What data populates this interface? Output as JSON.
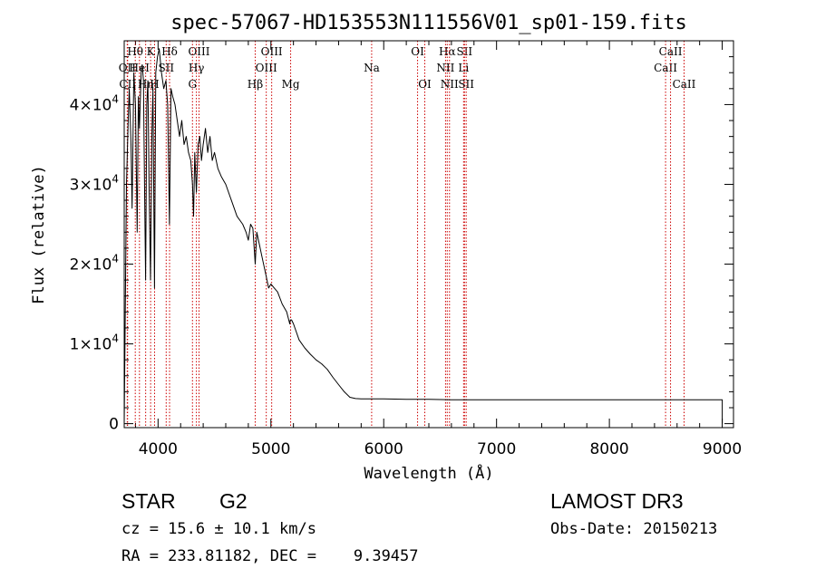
{
  "chart_data": {
    "type": "line",
    "title": "spec-57067-HD153553N111556V01_sp01-159.fits",
    "xlabel": "Wavelength (Å)",
    "ylabel": "Flux (relative)",
    "xlim": [
      3700,
      9100
    ],
    "ylim": [
      -500,
      48000
    ],
    "x_ticks": [
      4000,
      5000,
      6000,
      7000,
      8000,
      9000
    ],
    "y_ticks": [
      {
        "value": 0,
        "label": "0"
      },
      {
        "value": 10000,
        "label": "1×10",
        "exp": "4"
      },
      {
        "value": 20000,
        "label": "2×10",
        "exp": "4"
      },
      {
        "value": 30000,
        "label": "3×10",
        "exp": "4"
      },
      {
        "value": 40000,
        "label": "4×10",
        "exp": "4"
      }
    ],
    "line_color": "#000000",
    "marker_color": "#cc0000",
    "series": [
      {
        "name": "flux",
        "x": [
          3700,
          3720,
          3735,
          3745,
          3760,
          3770,
          3785,
          3800,
          3815,
          3825,
          3835,
          3850,
          3860,
          3870,
          3880,
          3890,
          3900,
          3910,
          3920,
          3933,
          3945,
          3955,
          3968,
          3980,
          3995,
          4010,
          4030,
          4050,
          4070,
          4085,
          4101,
          4115,
          4130,
          4150,
          4170,
          4190,
          4210,
          4230,
          4250,
          4270,
          4290,
          4305,
          4315,
          4325,
          4340,
          4355,
          4370,
          4385,
          4400,
          4420,
          4440,
          4460,
          4480,
          4500,
          4530,
          4560,
          4600,
          4650,
          4700,
          4750,
          4780,
          4800,
          4820,
          4840,
          4861,
          4875,
          4890,
          4920,
          4950,
          4980,
          5000,
          5030,
          5060,
          5100,
          5140,
          5167,
          5172,
          5183,
          5200,
          5250,
          5300,
          5350,
          5400,
          5450,
          5500,
          5550,
          5600,
          5650,
          5700,
          5750,
          5800,
          5850,
          5900,
          6000,
          6200,
          6400,
          6600,
          6700,
          6800,
          7000,
          8000,
          9000,
          9000
        ],
        "y": [
          0,
          30000,
          38000,
          42000,
          35000,
          27000,
          44000,
          40000,
          24000,
          41000,
          37000,
          44000,
          45000,
          43000,
          30000,
          18000,
          40000,
          43000,
          30000,
          18000,
          36000,
          42000,
          17000,
          44000,
          46000,
          47000,
          44000,
          42000,
          43000,
          40000,
          25000,
          42000,
          41000,
          40000,
          38000,
          36000,
          38000,
          35000,
          36000,
          34000,
          33000,
          30000,
          26000,
          34000,
          29000,
          35000,
          36000,
          33000,
          35000,
          37000,
          34000,
          36000,
          33000,
          34000,
          32000,
          31000,
          30000,
          28000,
          26000,
          25000,
          24000,
          23000,
          25000,
          24500,
          20000,
          24000,
          23000,
          21000,
          19000,
          17000,
          17500,
          17000,
          16500,
          15000,
          14000,
          12500,
          13000,
          13000,
          12500,
          10500,
          9500,
          8700,
          8000,
          7500,
          6800,
          5800,
          4900,
          4000,
          3300,
          3150,
          3100,
          3100,
          3100,
          3100,
          3050,
          3050,
          3000,
          3000,
          3000,
          3000,
          3000,
          3000,
          0
        ]
      }
    ],
    "lines": [
      {
        "name": "Hθ",
        "x": 3798,
        "row": 1
      },
      {
        "name": "OII",
        "x": 3727,
        "row": 2
      },
      {
        "name": "CII",
        "x": 3730,
        "row": 3
      },
      {
        "name": "HeI",
        "x": 3835,
        "row": 2
      },
      {
        "name": "Hη",
        "x": 3890,
        "row": 3
      },
      {
        "name": "K",
        "x": 3934,
        "row": 1
      },
      {
        "name": "H",
        "x": 3969,
        "row": 3
      },
      {
        "name": "Hδ",
        "x": 4102,
        "row": 1
      },
      {
        "name": "SII",
        "x": 4072,
        "row": 2
      },
      {
        "name": "OIII",
        "x": 4363,
        "row": 1
      },
      {
        "name": "Hγ",
        "x": 4340,
        "row": 2
      },
      {
        "name": "G",
        "x": 4305,
        "row": 3
      },
      {
        "name": "Hβ",
        "x": 4861,
        "row": 3
      },
      {
        "name": "OIII",
        "x": 4959,
        "row": 2
      },
      {
        "name": "OIII",
        "x": 5007,
        "row": 1
      },
      {
        "name": "Mg",
        "x": 5175,
        "row": 3
      },
      {
        "name": "Na",
        "x": 5893,
        "row": 2
      },
      {
        "name": "OI",
        "x": 6300,
        "row": 1
      },
      {
        "name": "OI",
        "x": 6364,
        "row": 3
      },
      {
        "name": "Hα",
        "x": 6563,
        "row": 1
      },
      {
        "name": "NII",
        "x": 6548,
        "row": 2
      },
      {
        "name": "NII",
        "x": 6583,
        "row": 3
      },
      {
        "name": "Li",
        "x": 6708,
        "row": 2
      },
      {
        "name": "SII",
        "x": 6716,
        "row": 1
      },
      {
        "name": "SII",
        "x": 6731,
        "row": 3
      },
      {
        "name": "CaII",
        "x": 8498,
        "row": 2
      },
      {
        "name": "CaII",
        "x": 8542,
        "row": 1
      },
      {
        "name": "CaII",
        "x": 8662,
        "row": 3
      }
    ]
  },
  "info": {
    "object_class": "STAR",
    "subclass": "G2",
    "survey": "LAMOST DR3",
    "redshift": "cz = 15.6 ± 10.1 km/s",
    "obs_date": "Obs-Date: 20150213",
    "coords": "RA = 233.81182, DEC =    9.39457"
  }
}
